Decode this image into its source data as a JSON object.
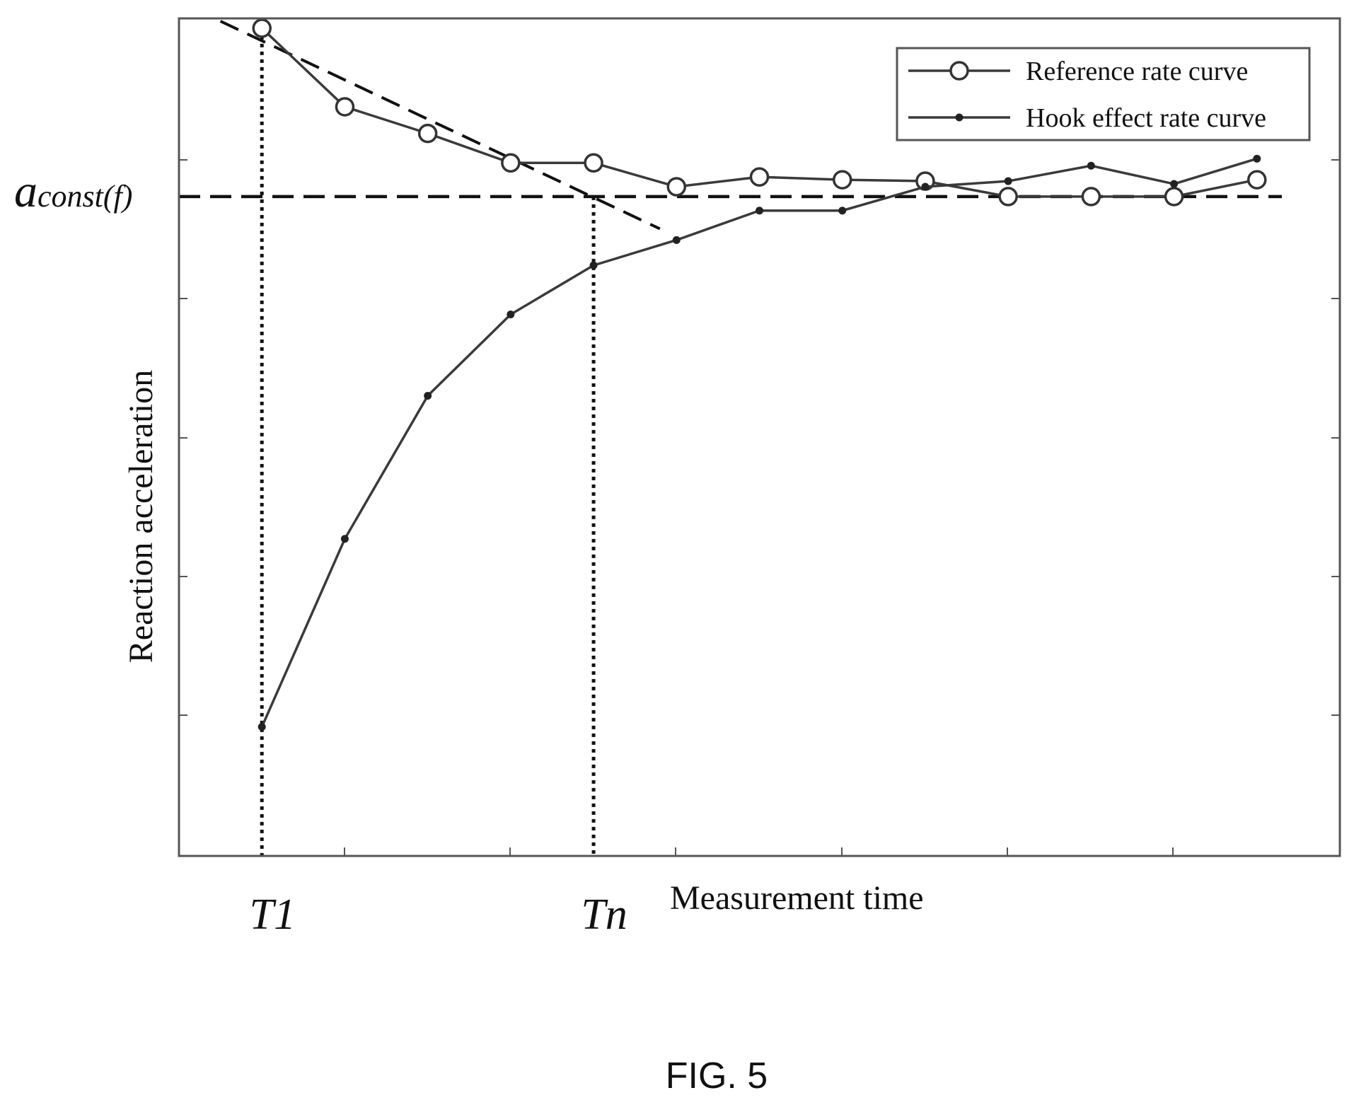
{
  "figure_caption": "FIG. 5",
  "chart_data": {
    "type": "line",
    "title": "",
    "xlabel": "Measurement time",
    "ylabel": "Reaction acceleration",
    "x_tick_labels": [
      {
        "label": "T1",
        "x": 1
      },
      {
        "label": "Tn",
        "x": 5
      }
    ],
    "y_annotation": {
      "main": "a",
      "subscript": "const(f)",
      "y": 0
    },
    "x": [
      1,
      2,
      3,
      4,
      5,
      6,
      7,
      8,
      9,
      10,
      11,
      12,
      13
    ],
    "xlim": [
      0,
      14
    ],
    "ylim": [
      -4.7,
      1.27
    ],
    "grid": false,
    "legend_position": "top-right",
    "series": [
      {
        "name": "Reference rate curve",
        "marker": "circle",
        "values": [
          1.2,
          0.64,
          0.45,
          0.24,
          0.24,
          0.07,
          0.14,
          0.12,
          0.11,
          0.0,
          0.0,
          0.0,
          0.12
        ]
      },
      {
        "name": "Hook effect rate curve",
        "marker": "dot",
        "values": [
          -3.78,
          -2.44,
          -1.42,
          -0.84,
          -0.49,
          -0.31,
          -0.1,
          -0.1,
          0.07,
          0.11,
          0.22,
          0.09,
          0.27
        ]
      }
    ],
    "reference_lines": [
      {
        "kind": "horizontal",
        "style": "dashed",
        "y": 0
      },
      {
        "kind": "vertical",
        "style": "dotted",
        "x": 1
      },
      {
        "kind": "vertical",
        "style": "dotted",
        "x": 5
      },
      {
        "kind": "tangent",
        "style": "dashed",
        "points": [
          [
            0.5,
            1.25
          ],
          [
            5.8,
            -0.23
          ]
        ]
      }
    ]
  }
}
